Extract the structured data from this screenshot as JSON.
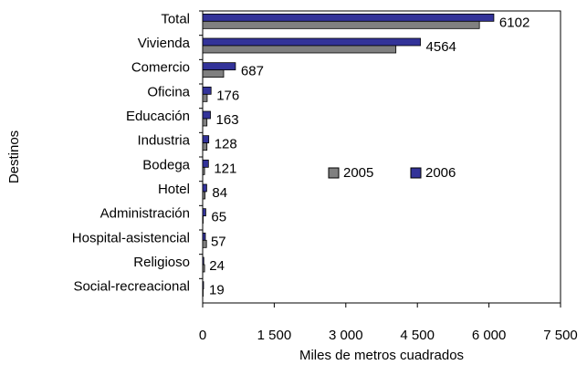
{
  "chart_data": {
    "type": "hbar",
    "categories": [
      "Total",
      "Vivienda",
      "Comercio",
      "Oficina",
      "Educación",
      "Industria",
      "Bodega",
      "Hotel",
      "Administración",
      "Hospital-asistencial",
      "Religioso",
      "Social-recreacional"
    ],
    "series": [
      {
        "name": "2005",
        "color": "#808080",
        "values": [
          5800,
          4050,
          440,
          95,
          90,
          90,
          40,
          50,
          10,
          80,
          40,
          10
        ]
      },
      {
        "name": "2006",
        "color": "#333399",
        "values": [
          6102,
          4564,
          687,
          176,
          163,
          128,
          121,
          84,
          65,
          57,
          24,
          19
        ],
        "show_value_labels": true
      }
    ],
    "xlim": [
      0,
      7500
    ],
    "xticks": [
      0,
      {
        "value": 1500,
        "label": "1 500"
      },
      {
        "value": 3000,
        "label": "3 000"
      },
      {
        "value": 4500,
        "label": "4 500"
      },
      {
        "value": 6000,
        "label": "6 000"
      },
      {
        "value": 7500,
        "label": "7 500"
      }
    ],
    "x_label": "Miles de metros cuadrados",
    "y_label": "Destinos",
    "legend": "center",
    "grid": false
  }
}
